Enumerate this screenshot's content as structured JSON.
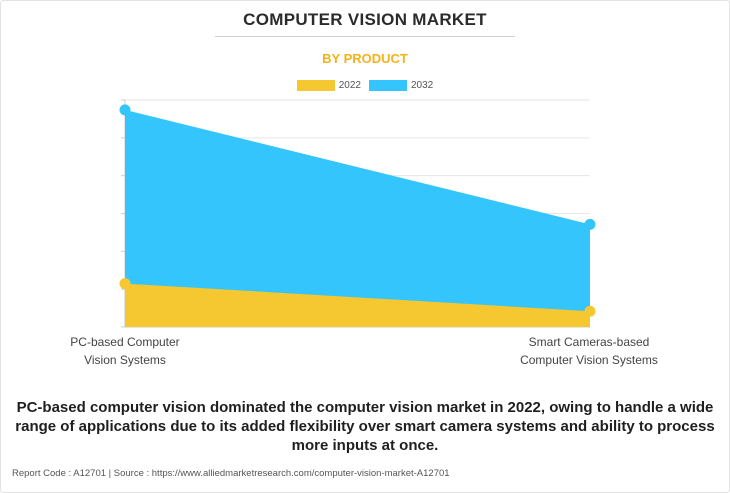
{
  "header": {
    "title": "COMPUTER VISION MARKET",
    "subtitle": "BY PRODUCT"
  },
  "legend": [
    {
      "label": "2022",
      "color": "#f5c731"
    },
    {
      "label": "2032",
      "color": "#33c5fb"
    }
  ],
  "categories": {
    "first": {
      "line1": "PC-based Computer",
      "line2": "Vision Systems"
    },
    "second": {
      "line1": "Smart Cameras-based",
      "line2": "Computer Vision Systems"
    }
  },
  "chart_data": {
    "type": "area",
    "categories": [
      "PC-based Computer Vision Systems",
      "Smart Cameras-based Computer Vision Systems"
    ],
    "series": [
      {
        "name": "2022",
        "color": "#f5c731",
        "values": [
          22,
          8
        ]
      },
      {
        "name": "2032",
        "color": "#33c5fb",
        "values": [
          110,
          52
        ]
      }
    ],
    "ylim": [
      0,
      115
    ],
    "grid": true,
    "legend_position": "top-center",
    "stacked": false
  },
  "caption": "PC-based computer vision dominated the computer vision market in 2022, owing to handle a wide range of applications due to its added flexibility over smart camera systems and ability to process more inputs at once.",
  "footer": "Report Code : A12701  |  Source : https://www.alliedmarketresearch.com/computer-vision-market-A12701"
}
